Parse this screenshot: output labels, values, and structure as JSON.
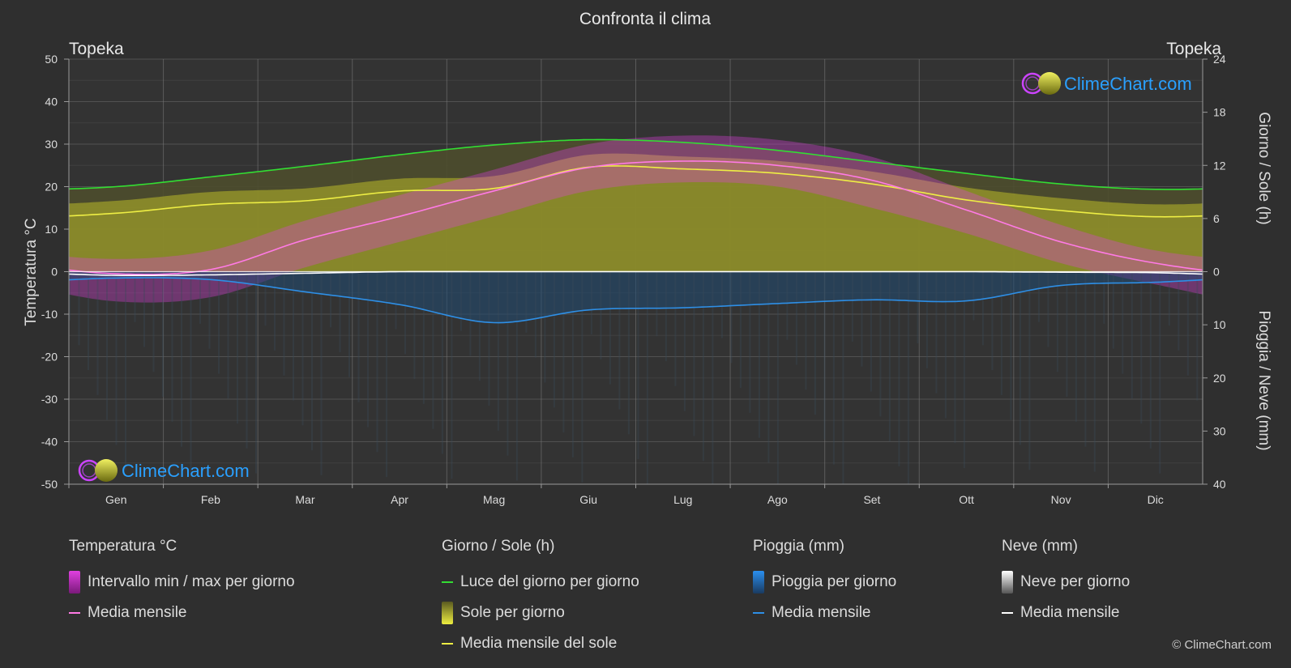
{
  "title": "Confronta il clima",
  "location_left": "Topeka",
  "location_right": "Topeka",
  "brand": "ClimeChart.com",
  "copyright": "© ClimeChart.com",
  "colors": {
    "background": "#2f2f2f",
    "temp_range": "#e040e0",
    "temp_mean": "#ff7ae5",
    "daylight": "#33dd33",
    "sun_fill": "#9c9c2a",
    "sun_mean": "#eeee44",
    "rain": "#2a7fd4",
    "rain_mean": "#2e8fe6",
    "snow": "#bdbdbd",
    "snow_mean": "#ffffff",
    "brand_text": "#2aa0ff"
  },
  "chart_data": {
    "type": "area",
    "categories": [
      "Gen",
      "Feb",
      "Mar",
      "Apr",
      "Mag",
      "Giu",
      "Lug",
      "Ago",
      "Set",
      "Ott",
      "Nov",
      "Dic"
    ],
    "left_axis": {
      "label": "Temperatura °C",
      "range": [
        -50,
        50
      ],
      "ticks": [
        "50",
        "40",
        "30",
        "20",
        "10",
        "0",
        "-10",
        "-20",
        "-30",
        "-40",
        "-50"
      ]
    },
    "right_axis_top": {
      "label": "Giorno / Sole (h)",
      "range": [
        0,
        24
      ],
      "ticks": [
        "24",
        "18",
        "12",
        "6",
        "0"
      ]
    },
    "right_axis_bottom": {
      "label": "Pioggia / Neve (mm)",
      "range": [
        0,
        40
      ],
      "ticks": [
        "0",
        "10",
        "20",
        "30",
        "40"
      ]
    },
    "grid": true,
    "series": [
      {
        "name": "Luce del giorno per giorno",
        "unit": "h",
        "values": [
          9.6,
          10.7,
          11.9,
          13.2,
          14.3,
          14.9,
          14.6,
          13.7,
          12.4,
          11.1,
          9.9,
          9.3
        ]
      },
      {
        "name": "Media mensile del sole",
        "unit": "h",
        "values": [
          6.6,
          7.6,
          8.0,
          9.1,
          9.4,
          11.8,
          11.6,
          11.1,
          9.9,
          8.1,
          6.9,
          6.2
        ]
      },
      {
        "name": "Media mensile",
        "group": "Temperatura °C",
        "unit": "°C",
        "values": [
          -0.5,
          0.5,
          7.5,
          13.0,
          19.0,
          24.5,
          26.0,
          25.0,
          21.5,
          14.5,
          7.0,
          2.0
        ]
      },
      {
        "name": "Media mensile",
        "group": "Pioggia (mm)",
        "unit": "mm",
        "values": [
          1.2,
          1.5,
          3.8,
          6.2,
          9.6,
          7.2,
          6.8,
          6.0,
          5.3,
          5.5,
          2.6,
          2.0
        ]
      },
      {
        "name": "Media mensile",
        "group": "Neve (mm)",
        "unit": "mm",
        "values": [
          0.7,
          0.6,
          0.3,
          0.0,
          0.0,
          0.0,
          0.0,
          0.0,
          0.0,
          0.0,
          0.1,
          0.2
        ]
      }
    ],
    "temp_range_envelope": {
      "unit": "°C",
      "max": [
        3,
        5,
        12,
        18,
        24,
        30,
        32,
        31,
        27,
        19,
        11,
        5
      ],
      "min": [
        -7,
        -6,
        1,
        7,
        13,
        19,
        21,
        20,
        15,
        9,
        2,
        -3
      ]
    }
  },
  "legend": {
    "groups": [
      {
        "heading": "Temperatura °C",
        "items": [
          {
            "label": "Intervallo min / max per giorno",
            "kind": "grad",
            "color": "#e040e0"
          },
          {
            "label": "Media mensile",
            "kind": "line",
            "color": "#ff7ae5"
          }
        ]
      },
      {
        "heading": "Giorno / Sole (h)",
        "items": [
          {
            "label": "Luce del giorno per giorno",
            "kind": "line",
            "color": "#33dd33"
          },
          {
            "label": "Sole per giorno",
            "kind": "grad",
            "color": "#c8c832"
          },
          {
            "label": "Media mensile del sole",
            "kind": "line",
            "color": "#eeee44"
          }
        ]
      },
      {
        "heading": "Pioggia (mm)",
        "items": [
          {
            "label": "Pioggia per giorno",
            "kind": "grad",
            "color": "#2a7fd4"
          },
          {
            "label": "Media mensile",
            "kind": "line",
            "color": "#2e8fe6"
          }
        ]
      },
      {
        "heading": "Neve (mm)",
        "items": [
          {
            "label": "Neve per giorno",
            "kind": "grad",
            "color": "#d0d0d0"
          },
          {
            "label": "Media mensile",
            "kind": "line",
            "color": "#ffffff"
          }
        ]
      }
    ]
  }
}
